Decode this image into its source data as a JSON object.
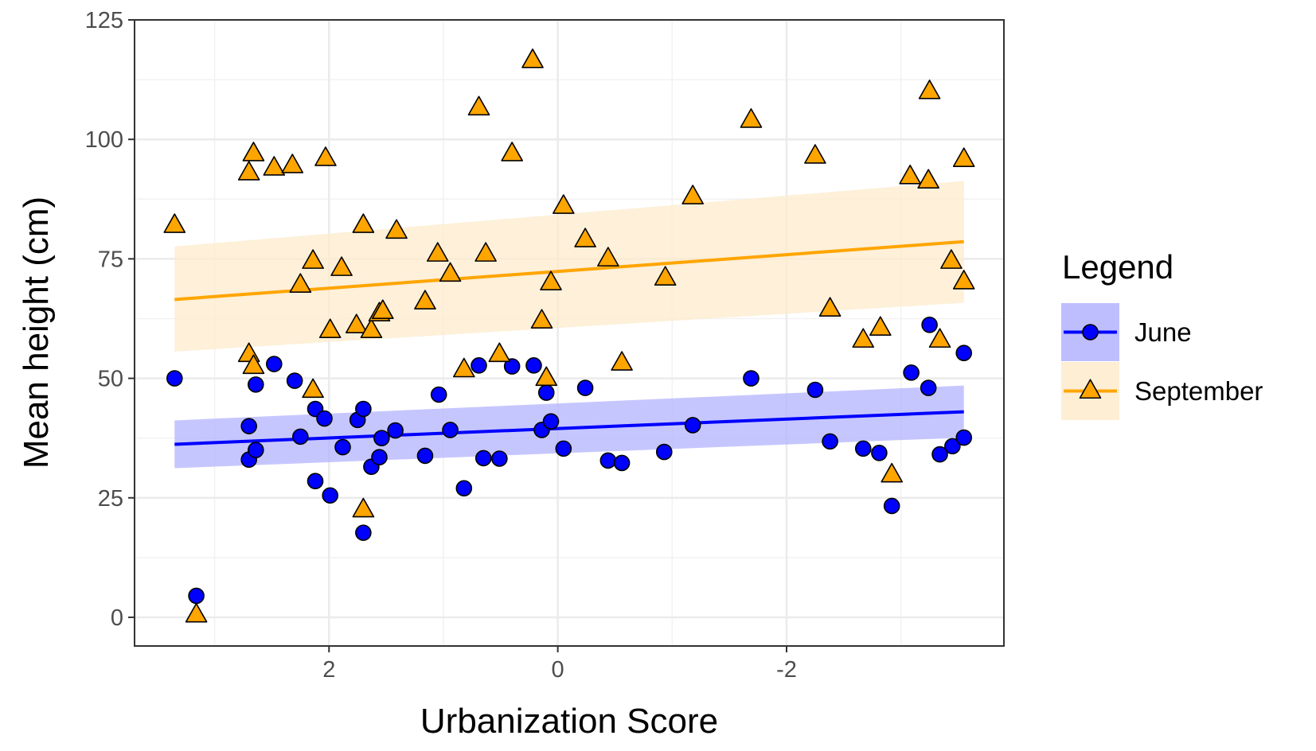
{
  "chart_data": {
    "type": "scatter",
    "title": "",
    "xlabel": "Urbanization Score",
    "ylabel": "Mean height (cm)",
    "x_reversed": true,
    "xlim": [
      3.7,
      -3.9
    ],
    "ylim": [
      -6,
      125
    ],
    "x_ticks": [
      2,
      0,
      -2
    ],
    "x_tick_labels": [
      "2",
      "0",
      "-2"
    ],
    "y_ticks": [
      0,
      25,
      50,
      75,
      100,
      125
    ],
    "y_tick_labels": [
      "0",
      "25",
      "50",
      "75",
      "100",
      "125"
    ],
    "grid": true,
    "legend": {
      "title": "Legend",
      "position": "right"
    },
    "series": [
      {
        "name": "June",
        "color": "#0000ff",
        "band_color": "#b3b3ff",
        "marker": "circle",
        "fit_line": {
          "x": [
            3.35,
            -3.55
          ],
          "y": [
            36.2,
            43.0
          ]
        },
        "ci_band": {
          "x": [
            3.35,
            -3.55
          ],
          "lower": [
            31.2,
            37.6
          ],
          "upper": [
            41.2,
            48.5
          ]
        },
        "points": [
          {
            "x": 3.35,
            "y": 50.0
          },
          {
            "x": 3.16,
            "y": 4.5
          },
          {
            "x": 2.7,
            "y": 40.0
          },
          {
            "x": 2.7,
            "y": 33.0
          },
          {
            "x": 2.64,
            "y": 48.7
          },
          {
            "x": 2.64,
            "y": 35.0
          },
          {
            "x": 2.48,
            "y": 53.0
          },
          {
            "x": 2.3,
            "y": 49.5
          },
          {
            "x": 2.25,
            "y": 37.8
          },
          {
            "x": 2.12,
            "y": 43.6
          },
          {
            "x": 2.12,
            "y": 28.5
          },
          {
            "x": 2.04,
            "y": 41.6
          },
          {
            "x": 1.99,
            "y": 25.5
          },
          {
            "x": 1.88,
            "y": 35.6
          },
          {
            "x": 1.75,
            "y": 41.3
          },
          {
            "x": 1.7,
            "y": 43.6
          },
          {
            "x": 1.7,
            "y": 17.7
          },
          {
            "x": 1.63,
            "y": 31.5
          },
          {
            "x": 1.56,
            "y": 33.5
          },
          {
            "x": 1.54,
            "y": 37.5
          },
          {
            "x": 1.42,
            "y": 39.1
          },
          {
            "x": 1.16,
            "y": 33.8
          },
          {
            "x": 1.04,
            "y": 46.6
          },
          {
            "x": 0.94,
            "y": 39.2
          },
          {
            "x": 0.82,
            "y": 27.0
          },
          {
            "x": 0.69,
            "y": 52.7
          },
          {
            "x": 0.65,
            "y": 33.3
          },
          {
            "x": 0.51,
            "y": 33.2
          },
          {
            "x": 0.4,
            "y": 52.5
          },
          {
            "x": 0.21,
            "y": 52.7
          },
          {
            "x": 0.14,
            "y": 39.2
          },
          {
            "x": 0.1,
            "y": 47.0
          },
          {
            "x": 0.06,
            "y": 41.0
          },
          {
            "x": -0.05,
            "y": 35.3
          },
          {
            "x": -0.24,
            "y": 48.0
          },
          {
            "x": -0.44,
            "y": 32.8
          },
          {
            "x": -0.56,
            "y": 32.3
          },
          {
            "x": -0.93,
            "y": 34.6
          },
          {
            "x": -1.18,
            "y": 40.2
          },
          {
            "x": -1.69,
            "y": 50.0
          },
          {
            "x": -2.25,
            "y": 47.6
          },
          {
            "x": -2.38,
            "y": 36.8
          },
          {
            "x": -2.67,
            "y": 35.3
          },
          {
            "x": -2.81,
            "y": 34.4
          },
          {
            "x": -2.92,
            "y": 23.3
          },
          {
            "x": -3.09,
            "y": 51.2
          },
          {
            "x": -3.24,
            "y": 48.0
          },
          {
            "x": -3.25,
            "y": 61.2
          },
          {
            "x": -3.34,
            "y": 34.1
          },
          {
            "x": -3.45,
            "y": 35.8
          },
          {
            "x": -3.55,
            "y": 37.6
          },
          {
            "x": -3.55,
            "y": 55.3
          }
        ]
      },
      {
        "name": "September",
        "color": "#ffa500",
        "band_color": "#fdebcc",
        "marker": "triangle",
        "fit_line": {
          "x": [
            3.35,
            -3.55
          ],
          "y": [
            66.5,
            78.6
          ]
        },
        "ci_band": {
          "x": [
            3.35,
            -3.55
          ],
          "lower": [
            55.6,
            65.8
          ],
          "upper": [
            77.6,
            91.3
          ]
        },
        "points": [
          {
            "x": 3.35,
            "y": 82.0
          },
          {
            "x": 3.16,
            "y": 0.5
          },
          {
            "x": 2.7,
            "y": 93.0
          },
          {
            "x": 2.7,
            "y": 55.0
          },
          {
            "x": 2.66,
            "y": 97.0
          },
          {
            "x": 2.66,
            "y": 52.5
          },
          {
            "x": 2.48,
            "y": 94.0
          },
          {
            "x": 2.32,
            "y": 94.5
          },
          {
            "x": 2.25,
            "y": 69.5
          },
          {
            "x": 2.14,
            "y": 74.5
          },
          {
            "x": 2.14,
            "y": 47.5
          },
          {
            "x": 2.03,
            "y": 96.0
          },
          {
            "x": 1.99,
            "y": 60.0
          },
          {
            "x": 1.89,
            "y": 73.0
          },
          {
            "x": 1.76,
            "y": 61.0
          },
          {
            "x": 1.7,
            "y": 82.0
          },
          {
            "x": 1.7,
            "y": 22.5
          },
          {
            "x": 1.63,
            "y": 60.0
          },
          {
            "x": 1.56,
            "y": 63.5
          },
          {
            "x": 1.53,
            "y": 64.0
          },
          {
            "x": 1.41,
            "y": 80.8
          },
          {
            "x": 1.16,
            "y": 66.0
          },
          {
            "x": 1.05,
            "y": 76.0
          },
          {
            "x": 0.94,
            "y": 71.8
          },
          {
            "x": 0.82,
            "y": 51.8
          },
          {
            "x": 0.69,
            "y": 106.6
          },
          {
            "x": 0.63,
            "y": 76.0
          },
          {
            "x": 0.51,
            "y": 55.0
          },
          {
            "x": 0.4,
            "y": 97.0
          },
          {
            "x": 0.22,
            "y": 116.5
          },
          {
            "x": 0.14,
            "y": 62.0
          },
          {
            "x": 0.1,
            "y": 50.0
          },
          {
            "x": 0.06,
            "y": 70.0
          },
          {
            "x": -0.05,
            "y": 86.0
          },
          {
            "x": -0.24,
            "y": 79.0
          },
          {
            "x": -0.44,
            "y": 75.0
          },
          {
            "x": -0.56,
            "y": 53.2
          },
          {
            "x": -0.94,
            "y": 71.0
          },
          {
            "x": -1.18,
            "y": 88.0
          },
          {
            "x": -1.69,
            "y": 104.0
          },
          {
            "x": -2.25,
            "y": 96.5
          },
          {
            "x": -2.38,
            "y": 64.5
          },
          {
            "x": -2.67,
            "y": 58.0
          },
          {
            "x": -2.82,
            "y": 60.5
          },
          {
            "x": -2.92,
            "y": 29.8
          },
          {
            "x": -3.08,
            "y": 92.2
          },
          {
            "x": -3.24,
            "y": 91.3
          },
          {
            "x": -3.25,
            "y": 110.0
          },
          {
            "x": -3.34,
            "y": 58.0
          },
          {
            "x": -3.44,
            "y": 74.5
          },
          {
            "x": -3.55,
            "y": 95.8
          },
          {
            "x": -3.55,
            "y": 70.2
          }
        ]
      }
    ]
  }
}
